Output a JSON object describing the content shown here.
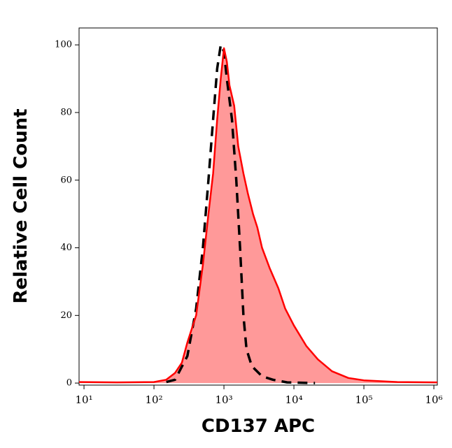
{
  "chart_data": {
    "type": "histogram-overlay",
    "x_label": "CD137 APC",
    "y_label": "Relative Cell Count",
    "log_x": true,
    "xlim": [
      8.5,
      1120000
    ],
    "ylim": [
      -0.6,
      105
    ],
    "xticks": [
      {
        "value": 10,
        "label": "10¹"
      },
      {
        "value": 100,
        "label": "10²"
      },
      {
        "value": 1000,
        "label": "10³"
      },
      {
        "value": 10000,
        "label": "10⁴"
      },
      {
        "value": 100000,
        "label": "10⁵"
      },
      {
        "value": 1000000,
        "label": "10⁶"
      }
    ],
    "yticks": [
      0,
      20,
      40,
      60,
      80,
      100
    ],
    "series": [
      {
        "color": "#ff0000",
        "fill": "#ff9999",
        "dashed": false,
        "x": [
          8.5,
          30,
          100,
          150,
          200,
          250,
          300,
          400,
          500,
          600,
          700,
          800,
          900,
          1000,
          1100,
          1200,
          1400,
          1600,
          1900,
          2200,
          2600,
          3000,
          3500,
          4500,
          6000,
          7500,
          10000,
          15000,
          22000,
          35000,
          60000,
          100000,
          300000,
          1120000
        ],
        "values": [
          0.3,
          0.2,
          0.3,
          1,
          3,
          6,
          12,
          20,
          35,
          50,
          62,
          78,
          90,
          99,
          95,
          88,
          82,
          70,
          62,
          56,
          50,
          46,
          40,
          34,
          28,
          22,
          17,
          11,
          7,
          3.5,
          1.5,
          0.8,
          0.3,
          0.2
        ]
      },
      {
        "color": "#000000",
        "fill": null,
        "dashed": true,
        "x": [
          150,
          200,
          300,
          400,
          500,
          600,
          700,
          800,
          900,
          1000,
          1100,
          1300,
          1500,
          1700,
          1900,
          2100,
          2500,
          3500,
          5000,
          8000,
          20000
        ],
        "values": [
          0.3,
          1,
          8,
          22,
          40,
          60,
          78,
          93,
          100,
          98,
          90,
          78,
          60,
          40,
          20,
          10,
          5,
          2,
          1,
          0.2,
          0
        ]
      }
    ]
  }
}
